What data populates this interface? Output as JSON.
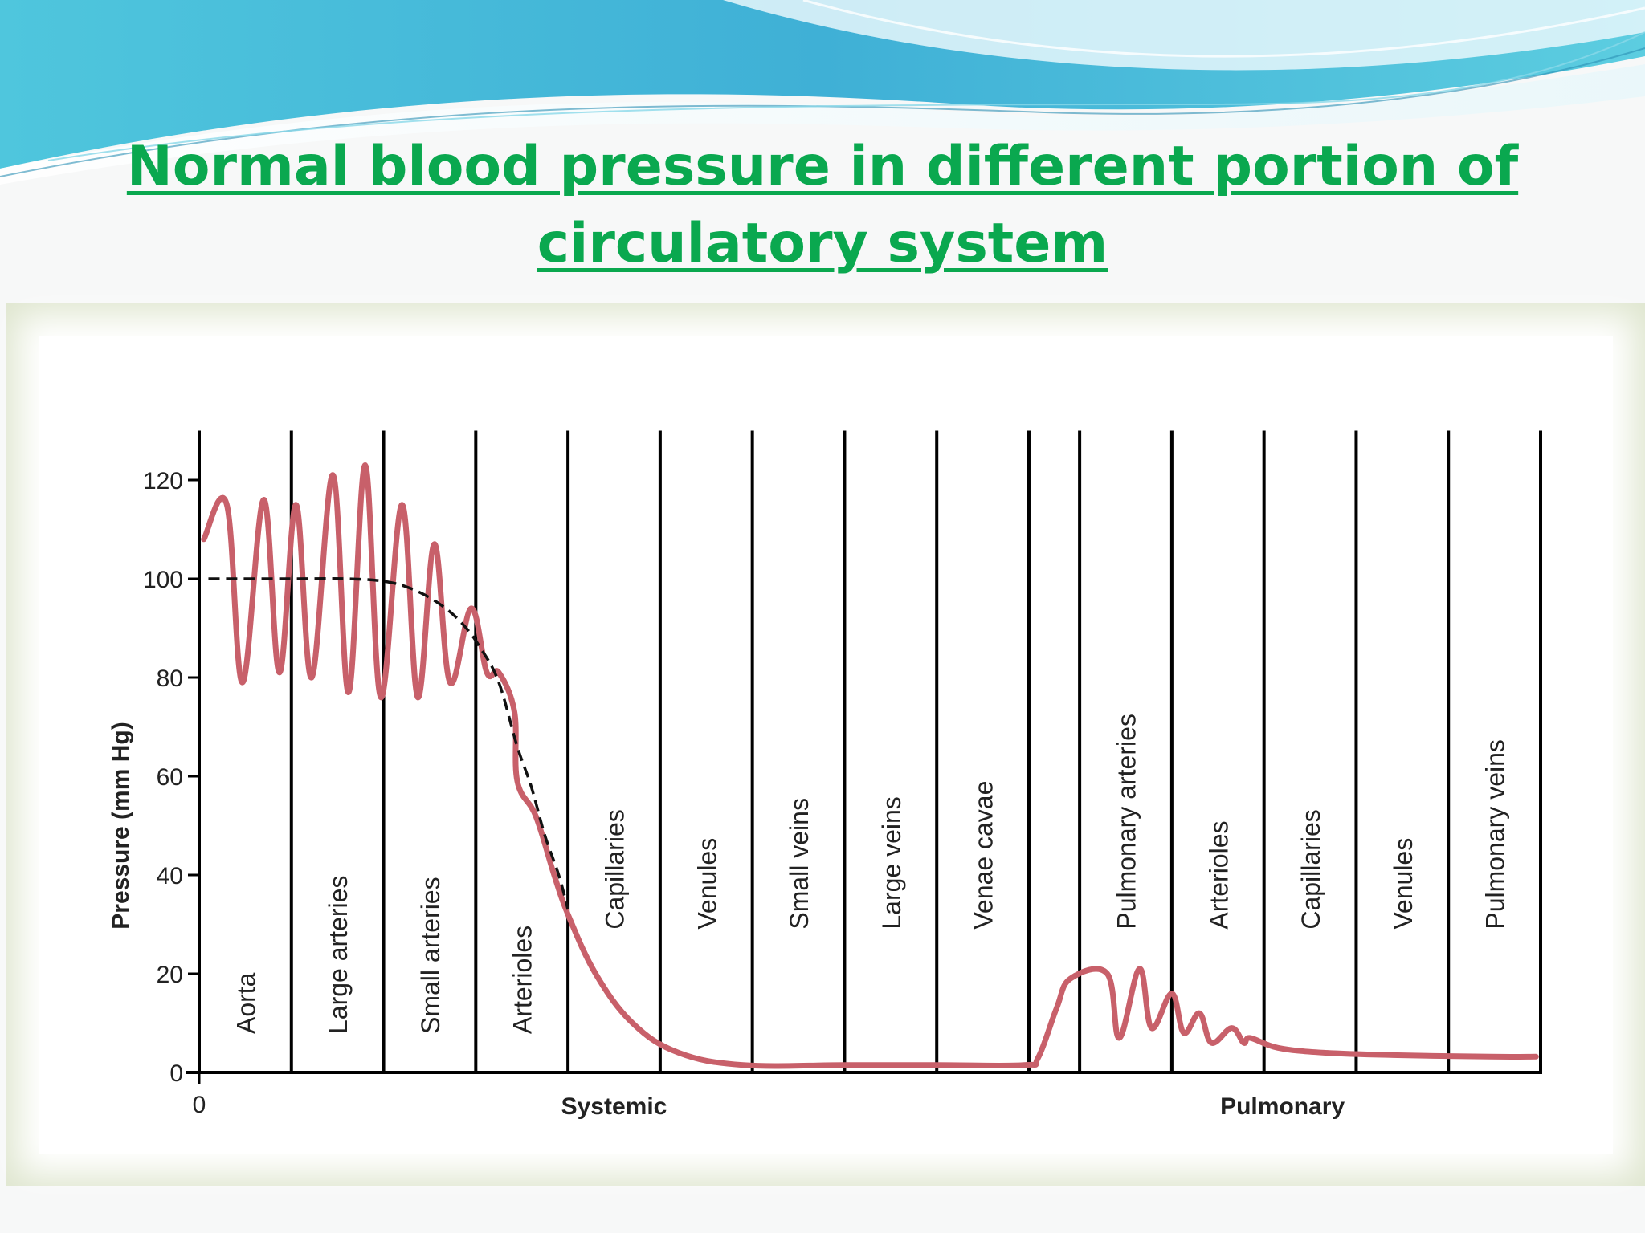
{
  "slide": {
    "title": "Normal blood pressure in different portion of circulatory system"
  },
  "colors": {
    "title": "#0aa84f",
    "pressure_curve": "#c8606a",
    "mean_curve": "#111111",
    "frame": "#dfe6cf"
  },
  "chart_data": {
    "type": "line",
    "title": "",
    "ylabel": "Pressure (mm Hg)",
    "xlabel": "",
    "ylim": [
      0,
      130
    ],
    "yticks": [
      0,
      20,
      40,
      60,
      80,
      100,
      120
    ],
    "x_origin_label": "0",
    "circuit_labels": [
      {
        "label": "Systemic",
        "x": 4.5
      },
      {
        "label": "Pulmonary",
        "x": 11.75
      }
    ],
    "segments": [
      {
        "label": "Aorta",
        "start": 0,
        "end": 1,
        "circuit": "systemic"
      },
      {
        "label": "Large arteries",
        "start": 1,
        "end": 2,
        "circuit": "systemic"
      },
      {
        "label": "Small arteries",
        "start": 2,
        "end": 3,
        "circuit": "systemic"
      },
      {
        "label": "Arterioles",
        "start": 3,
        "end": 4,
        "circuit": "systemic"
      },
      {
        "label": "Capillaries",
        "start": 4,
        "end": 5,
        "circuit": "systemic"
      },
      {
        "label": "Venules",
        "start": 5,
        "end": 6,
        "circuit": "systemic"
      },
      {
        "label": "Small veins",
        "start": 6,
        "end": 7,
        "circuit": "systemic"
      },
      {
        "label": "Large veins",
        "start": 7,
        "end": 8,
        "circuit": "systemic"
      },
      {
        "label": "Venae cavae",
        "start": 8,
        "end": 9,
        "circuit": "systemic"
      },
      {
        "label": "Pulmonary arteries",
        "start": 9.55,
        "end": 10.55,
        "circuit": "pulmonary"
      },
      {
        "label": "Arterioles",
        "start": 10.55,
        "end": 11.55,
        "circuit": "pulmonary"
      },
      {
        "label": "Capillaries",
        "start": 11.55,
        "end": 12.55,
        "circuit": "pulmonary"
      },
      {
        "label": "Venules",
        "start": 12.55,
        "end": 13.55,
        "circuit": "pulmonary"
      },
      {
        "label": "Pulmonary veins",
        "start": 13.55,
        "end": 14.55,
        "circuit": "pulmonary"
      }
    ],
    "series": [
      {
        "style": "pulsatile",
        "waves": [
          {
            "x": 0.3,
            "max": 115,
            "min": 79
          },
          {
            "x": 0.7,
            "max": 116,
            "min": 81
          },
          {
            "x": 1.05,
            "max": 115,
            "min": 80
          },
          {
            "x": 1.45,
            "max": 121,
            "min": 77
          },
          {
            "x": 1.8,
            "max": 123,
            "min": 76
          },
          {
            "x": 2.2,
            "max": 115,
            "min": 76
          },
          {
            "x": 2.55,
            "max": 107,
            "min": 79
          },
          {
            "x": 2.95,
            "max": 94,
            "min": 81
          },
          {
            "x": 3.25,
            "max": 81,
            "min": 73
          }
        ],
        "points": [
          [
            3.45,
            59
          ],
          [
            3.65,
            52
          ],
          [
            3.85,
            40
          ],
          [
            4.0,
            32
          ],
          [
            4.3,
            20
          ],
          [
            4.7,
            10
          ],
          [
            5.2,
            4
          ],
          [
            5.9,
            1.5
          ],
          [
            7.0,
            1.5
          ],
          [
            8.0,
            1.5
          ],
          [
            8.95,
            1.5
          ],
          [
            9.1,
            3
          ],
          [
            9.3,
            13
          ],
          [
            9.45,
            19
          ]
        ],
        "pulmonary_waves": [
          {
            "x": 9.85,
            "max": 20,
            "min": 7
          },
          {
            "x": 10.2,
            "max": 21,
            "min": 9
          },
          {
            "x": 10.55,
            "max": 16,
            "min": 8
          },
          {
            "x": 10.85,
            "max": 12,
            "min": 6
          },
          {
            "x": 11.2,
            "max": 9,
            "min": 6
          }
        ],
        "tail": [
          [
            11.4,
            7
          ],
          [
            11.7,
            5
          ],
          [
            12.2,
            4
          ],
          [
            13.0,
            3.5
          ],
          [
            14.0,
            3.2
          ],
          [
            14.5,
            3.2
          ]
        ]
      },
      {
        "style": "dashed",
        "points": [
          [
            0.1,
            100
          ],
          [
            1.0,
            100
          ],
          [
            1.6,
            100
          ],
          [
            2.0,
            99.5
          ],
          [
            2.3,
            98
          ],
          [
            2.6,
            95
          ],
          [
            2.85,
            91
          ],
          [
            3.05,
            86
          ],
          [
            3.25,
            79
          ],
          [
            3.45,
            66
          ],
          [
            3.6,
            58
          ],
          [
            3.75,
            48
          ],
          [
            3.9,
            40
          ],
          [
            4.0,
            33
          ]
        ]
      }
    ]
  }
}
